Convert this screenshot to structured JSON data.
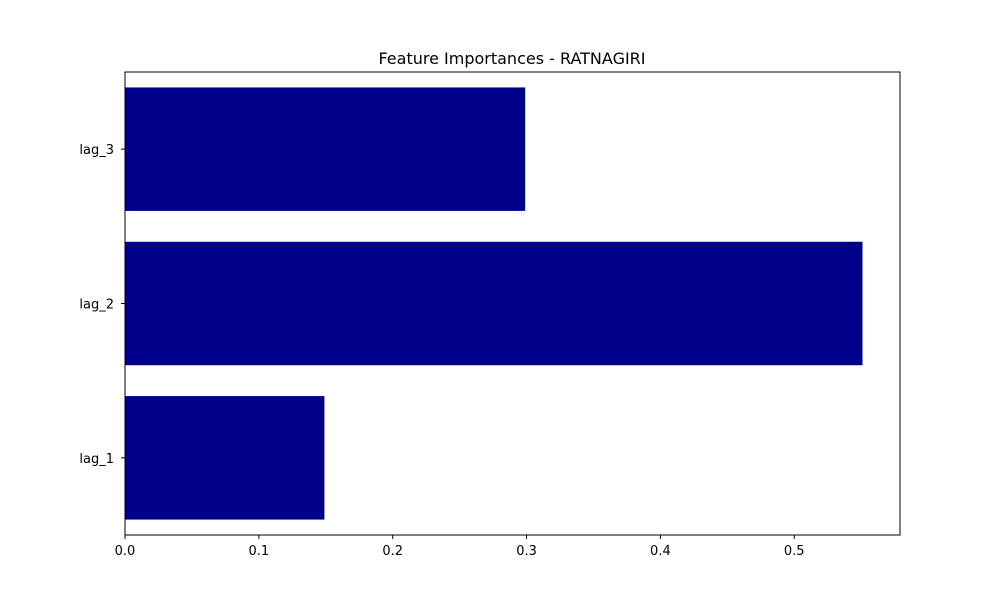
{
  "chart_data": {
    "type": "bar",
    "orientation": "horizontal",
    "title": "Feature Importances - RATNAGIRI",
    "xlabel": "",
    "ylabel": "",
    "categories": [
      "lag_1",
      "lag_2",
      "lag_3"
    ],
    "values": [
      0.149,
      0.551,
      0.299
    ],
    "xlim": [
      0,
      0.579
    ],
    "xticks": [
      0.0,
      0.1,
      0.2,
      0.3,
      0.4,
      0.5
    ],
    "xtick_labels": [
      "0.0",
      "0.1",
      "0.2",
      "0.3",
      "0.4",
      "0.5"
    ],
    "grid": false,
    "legend": "none",
    "bar_color": "#00008b"
  }
}
